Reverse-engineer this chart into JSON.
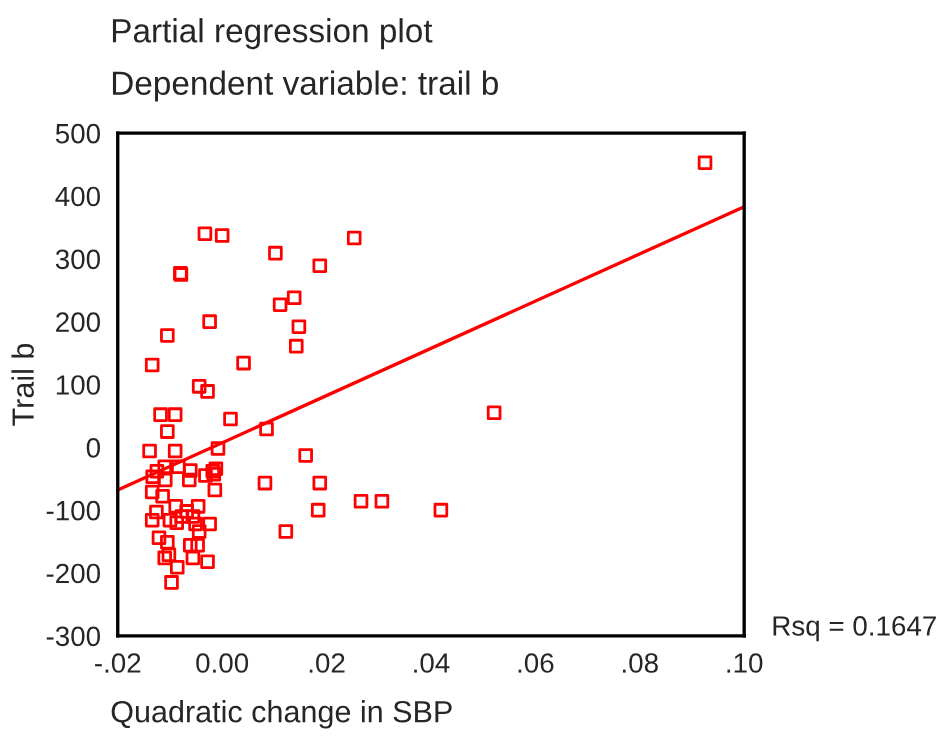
{
  "chart_data": {
    "type": "scatter",
    "title": "Partial regression plot",
    "subtitle": "Dependent variable: trail b",
    "xlabel": "Quadratic change in SBP",
    "ylabel": "Trail b",
    "annotations": [
      "Rsq = 0.1647"
    ],
    "xlim": [
      -0.02,
      0.1
    ],
    "xticks": [
      {
        "value": -0.02,
        "label": "-.02"
      },
      {
        "value": 0.0,
        "label": "0.00"
      },
      {
        "value": 0.02,
        "label": ".02"
      },
      {
        "value": 0.04,
        "label": ".04"
      },
      {
        "value": 0.06,
        "label": ".06"
      },
      {
        "value": 0.08,
        "label": ".08"
      },
      {
        "value": 0.1,
        "label": ".10"
      }
    ],
    "ylim": [
      -300,
      500
    ],
    "yticks": [
      -300,
      -200,
      -100,
      0,
      100,
      200,
      300,
      400,
      500
    ],
    "grid": false,
    "series": [
      {
        "marker": "square",
        "color": "#ff0000",
        "x": [
          -0.0033,
          0.0,
          0.0102,
          0.0187,
          -0.008,
          -0.0079,
          0.0138,
          0.0111,
          -0.0024,
          0.0147,
          -0.0105,
          0.0142,
          -0.0134,
          0.0041,
          -0.0044,
          -0.0028,
          -0.0118,
          -0.009,
          0.0016,
          -0.0105,
          0.0085,
          -0.0139,
          -0.009,
          -0.0008,
          0.016,
          -0.011,
          -0.0084,
          -0.0125,
          -0.0061,
          -0.0012,
          -0.0018,
          -0.0133,
          -0.0109,
          -0.0063,
          -0.0032,
          -0.0016,
          0.0082,
          0.0187,
          -0.0134,
          -0.0014,
          -0.0114,
          -0.0089,
          -0.0046,
          -0.0126,
          -0.0068,
          -0.0056,
          -0.0077,
          -0.01,
          -0.0134,
          -0.0087,
          -0.0051,
          -0.0024,
          -0.0044,
          0.0184,
          0.0122,
          -0.0121,
          -0.0105,
          -0.0061,
          -0.0047,
          -0.0102,
          -0.011,
          -0.0056,
          -0.0028,
          -0.0086,
          -0.0097,
          0.0253,
          0.0521,
          0.0266,
          0.0306,
          0.0419,
          0.0925
        ],
        "values": [
          340,
          337,
          309,
          289,
          277,
          275,
          238,
          227,
          200,
          192,
          178,
          161,
          131,
          134,
          97,
          89,
          52,
          52,
          45,
          25,
          29,
          -6,
          -6,
          -2,
          -13,
          -31,
          -31,
          -38,
          -37,
          -34,
          -38,
          -47,
          -52,
          -52,
          -45,
          -43,
          -57,
          -57,
          -71,
          -68,
          -78,
          -94,
          -94,
          -103,
          -102,
          -110,
          -110,
          -116,
          -116,
          -120,
          -122,
          -122,
          -134,
          -100,
          -134,
          -144,
          -151,
          -156,
          -156,
          -171,
          -176,
          -176,
          -182,
          -191,
          -215,
          333,
          55,
          -86,
          -86,
          -100,
          453
        ]
      },
      {
        "type": "line",
        "color": "#ff0000",
        "x": [
          -0.02,
          0.1
        ],
        "values": [
          -68,
          383
        ]
      }
    ]
  }
}
